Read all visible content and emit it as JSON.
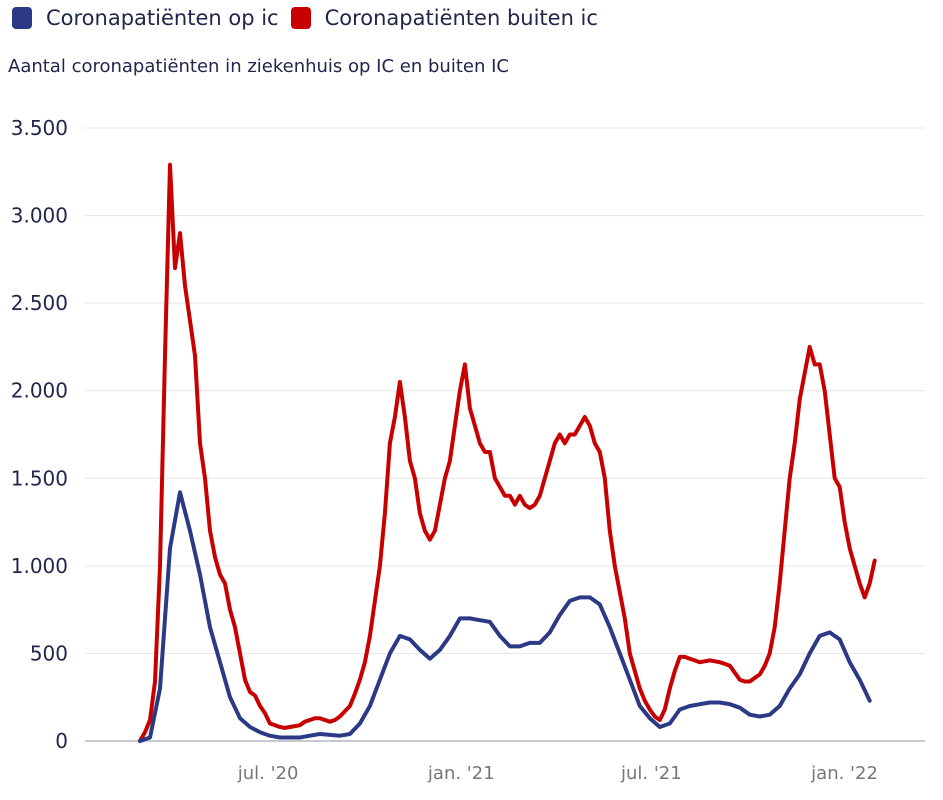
{
  "chart_data": {
    "type": "line",
    "title": "",
    "subtitle": "Aantal coronapatiënten in ziekenhuis op IC en buiten IC",
    "xlabel": "",
    "ylabel": "",
    "ylim": [
      0,
      3500
    ],
    "yticks": [
      0,
      500,
      1000,
      1500,
      2000,
      2500,
      3000,
      3500
    ],
    "ytick_labels": [
      "0",
      "500",
      "1.000",
      "1.500",
      "2.000",
      "2.500",
      "3.000",
      "3.500"
    ],
    "xticks": [
      {
        "day": 122,
        "label": "jul. '20"
      },
      {
        "day": 306,
        "label": "jan. '21"
      },
      {
        "day": 487,
        "label": "jul. '21"
      },
      {
        "day": 671,
        "label": "jan. '22"
      }
    ],
    "x_units": "days since 2020-03-01",
    "grid": true,
    "legend_position": "top-left",
    "series": [
      {
        "name": "Coronapatiënten op ic",
        "color": "#2c3a86",
        "start_day": 0,
        "step_days": 9.52,
        "values": [
          0,
          20,
          300,
          1100,
          1420,
          1200,
          950,
          650,
          450,
          250,
          130,
          80,
          50,
          30,
          20,
          20,
          20,
          30,
          40,
          35,
          30,
          40,
          100,
          200,
          350,
          500,
          600,
          580,
          520,
          470,
          520,
          600,
          700,
          700,
          690,
          680,
          600,
          540,
          540,
          560,
          560,
          620,
          720,
          800,
          820,
          820,
          780,
          650,
          500,
          350,
          200,
          130,
          80,
          100,
          180,
          200,
          210,
          220,
          220,
          210,
          190,
          150,
          140,
          150,
          200,
          300,
          380,
          500,
          600,
          620,
          580,
          450,
          350,
          230
        ]
      },
      {
        "name": "Coronapatiënten buiten ic",
        "color": "#c80000",
        "start_day": 0,
        "step_days": 4.76,
        "values": [
          0,
          50,
          120,
          340,
          1000,
          2200,
          3290,
          2700,
          2900,
          2600,
          2400,
          2200,
          1700,
          1500,
          1200,
          1050,
          950,
          900,
          750,
          650,
          500,
          350,
          280,
          260,
          200,
          160,
          100,
          90,
          80,
          75,
          80,
          85,
          90,
          110,
          120,
          130,
          130,
          120,
          110,
          120,
          140,
          170,
          200,
          270,
          350,
          450,
          600,
          800,
          1000,
          1300,
          1700,
          1850,
          2050,
          1850,
          1600,
          1500,
          1300,
          1200,
          1150,
          1200,
          1350,
          1500,
          1600,
          1800,
          2000,
          2150,
          1900,
          1800,
          1700,
          1650,
          1650,
          1500,
          1450,
          1400,
          1400,
          1350,
          1400,
          1350,
          1330,
          1350,
          1400,
          1500,
          1600,
          1700,
          1750,
          1700,
          1750,
          1750,
          1800,
          1850,
          1800,
          1700,
          1650,
          1500,
          1200,
          1000,
          850,
          700,
          500,
          400,
          300,
          230,
          180,
          140,
          120,
          180,
          300,
          400,
          480,
          480,
          470,
          460,
          450,
          455,
          460,
          455,
          450,
          440,
          430,
          390,
          350,
          340,
          340,
          360,
          380,
          430,
          500,
          650,
          900,
          1200,
          1500,
          1700,
          1950,
          2100,
          2250,
          2150,
          2150,
          2000,
          1750,
          1500,
          1450,
          1250,
          1100,
          1000,
          900,
          820,
          900,
          1030
        ]
      }
    ]
  }
}
